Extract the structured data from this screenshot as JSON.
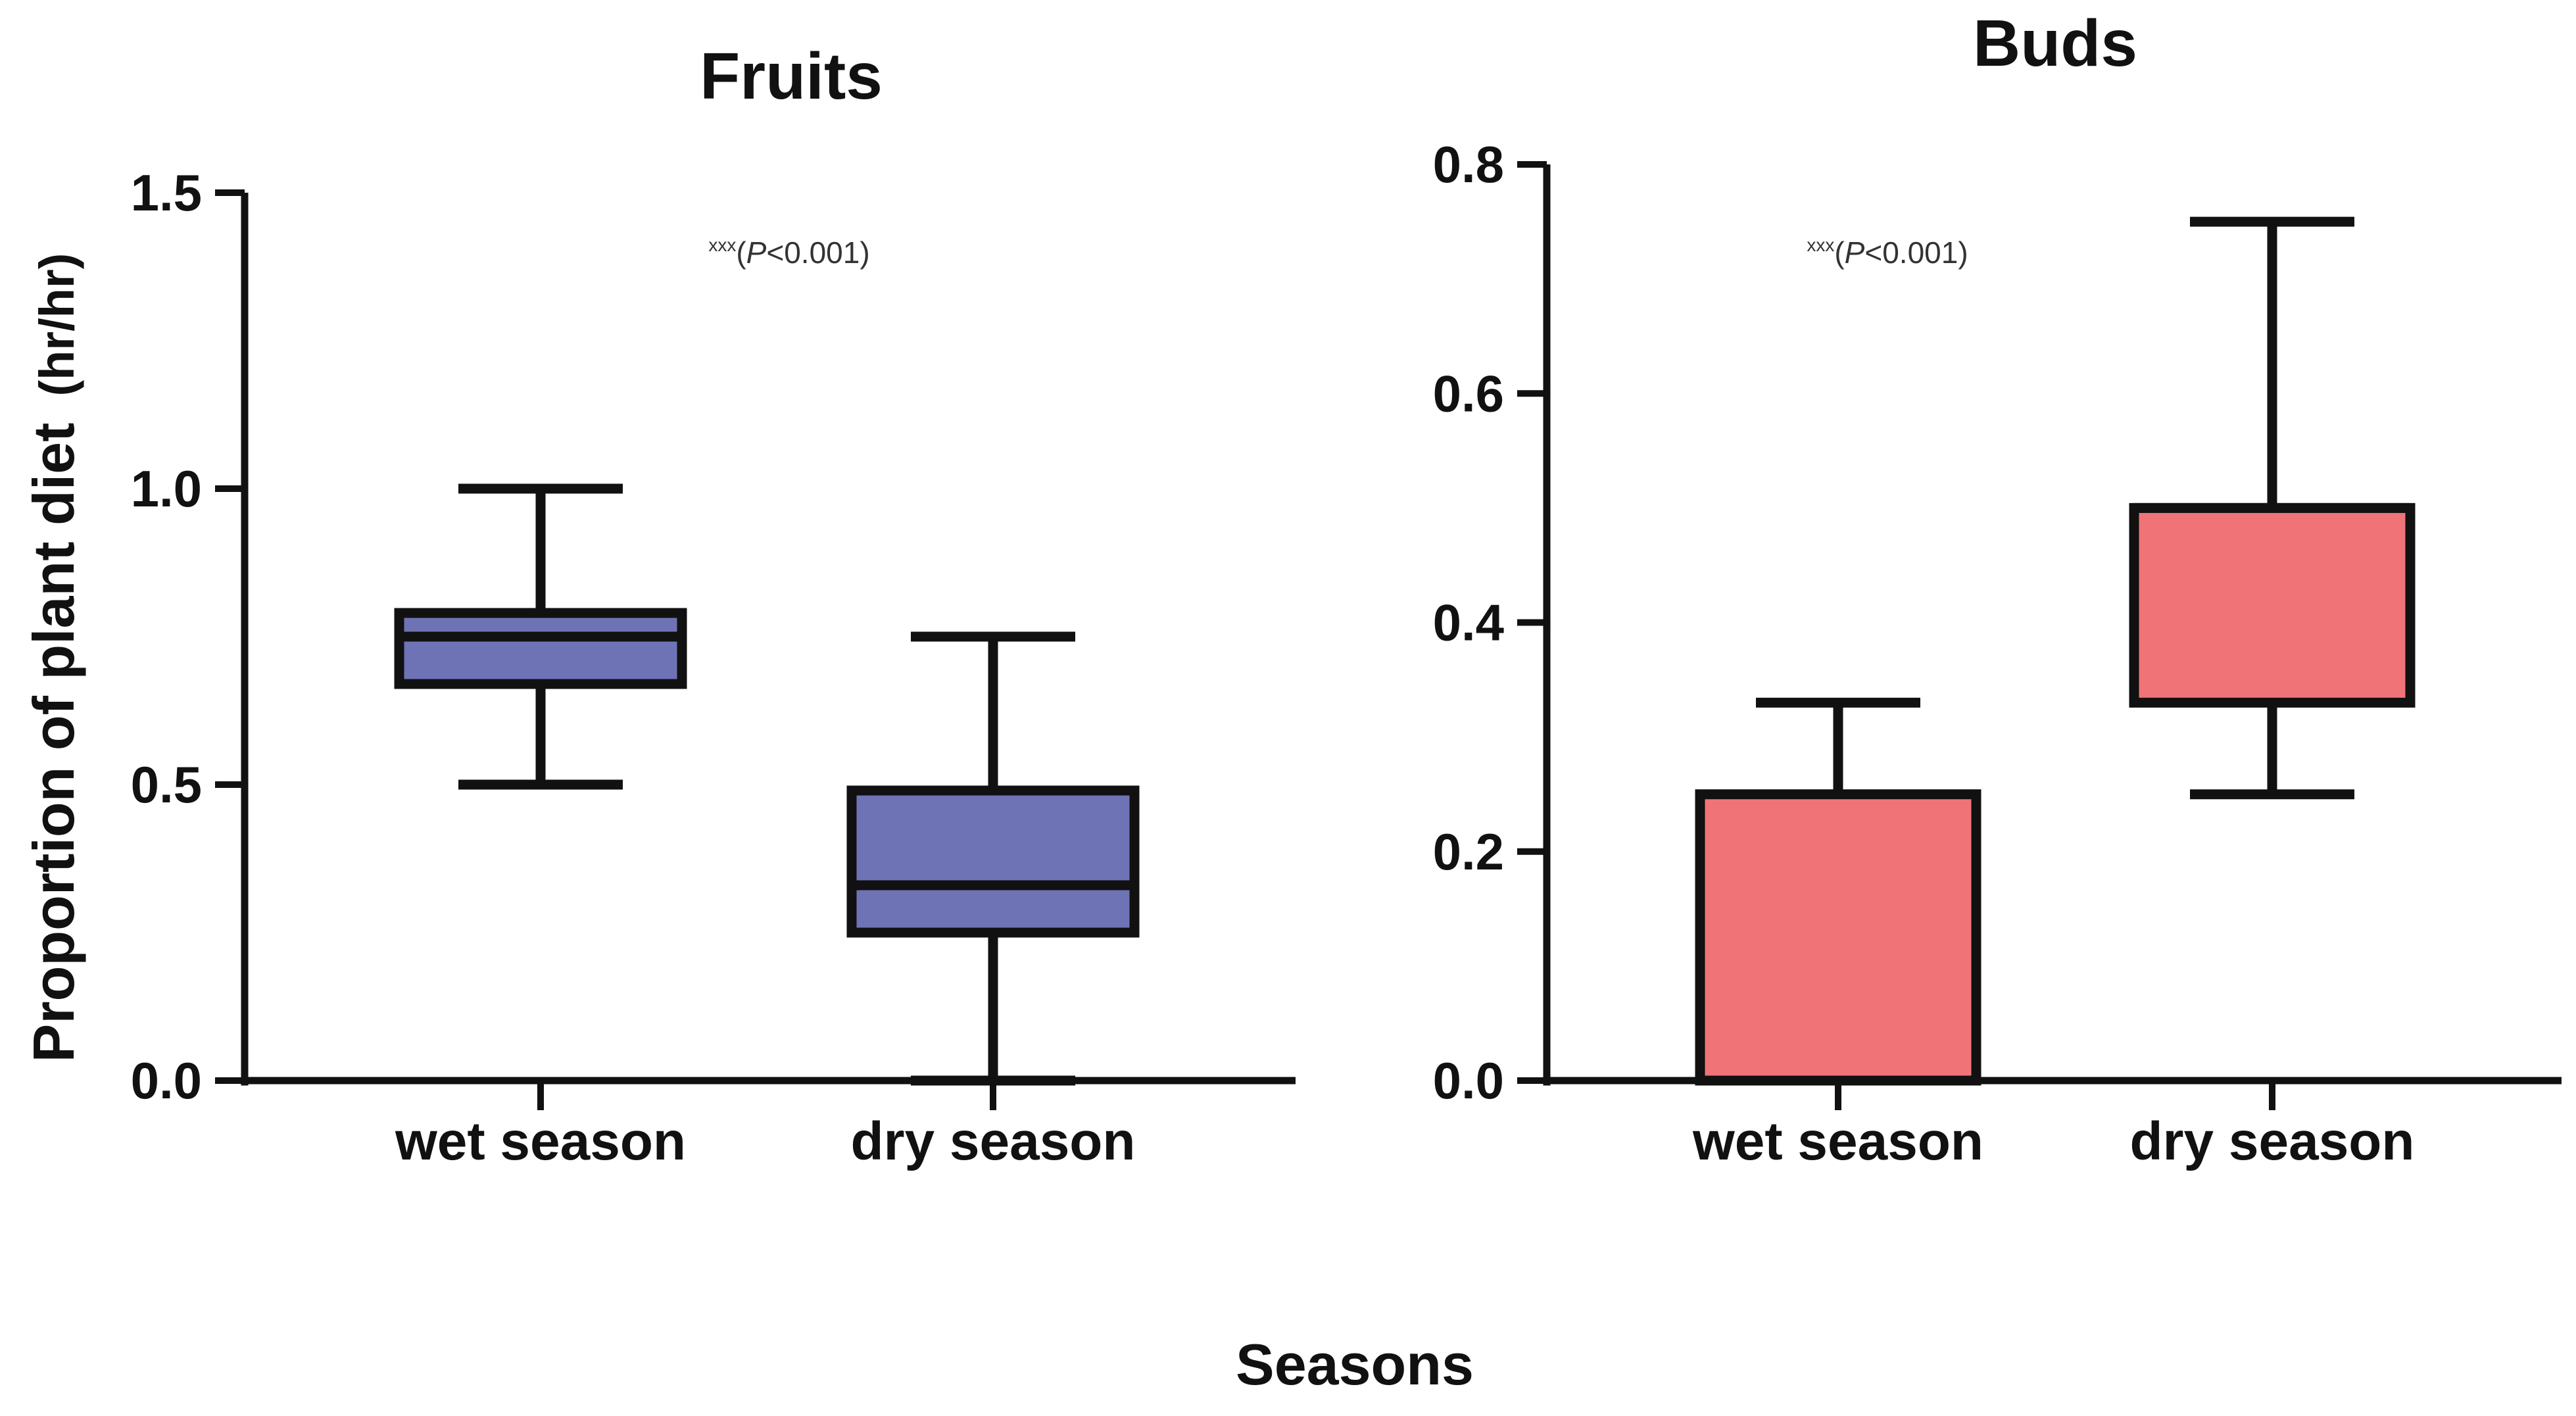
{
  "figure": {
    "xlabel": "Seasons",
    "ylabel": "Proportion of plant diet",
    "ylabel_unit": "(hr/hr)"
  },
  "chart_data": [
    {
      "type": "box",
      "title": "Fruits",
      "categories": [
        "wet season",
        "dry season"
      ],
      "ylim": [
        0,
        1.5
      ],
      "yticks": [
        "0.0",
        "0.5",
        "1.0",
        "1.5"
      ],
      "ytick_values": [
        0,
        0.5,
        1.0,
        1.5
      ],
      "fill_color": "#6e73b6",
      "annotation": {
        "sup": "xxx",
        "p_label": "P",
        "p_rest": "<0.001)",
        "open": "("
      },
      "boxes": [
        {
          "category": "wet season",
          "min": 0.5,
          "q1": 0.67,
          "median": 0.75,
          "q3": 0.79,
          "max": 1.0
        },
        {
          "category": "dry season",
          "min": 0.0,
          "q1": 0.25,
          "median": 0.33,
          "q3": 0.49,
          "max": 0.75
        }
      ]
    },
    {
      "type": "box",
      "title": "Buds",
      "categories": [
        "wet season",
        "dry season"
      ],
      "ylim": [
        0,
        0.8
      ],
      "yticks": [
        "0.0",
        "0.2",
        "0.4",
        "0.6",
        "0.8"
      ],
      "ytick_values": [
        0,
        0.2,
        0.4,
        0.6,
        0.8
      ],
      "fill_color": "#f07378",
      "annotation": {
        "sup": "xxx",
        "p_label": "P",
        "p_rest": "<0.001)",
        "open": "("
      },
      "boxes": [
        {
          "category": "wet season",
          "min": 0.0,
          "q1": 0.0,
          "median": 0.0,
          "q3": 0.25,
          "max": 0.33
        },
        {
          "category": "dry season",
          "min": 0.25,
          "q1": 0.33,
          "median": 0.5,
          "q3": 0.5,
          "max": 0.75
        }
      ]
    }
  ]
}
